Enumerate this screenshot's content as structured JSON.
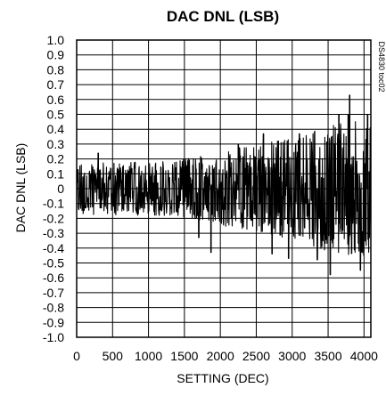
{
  "chart_data": {
    "type": "line",
    "title": "DAC DNL (LSB)",
    "xlabel": "SETTING (DEC)",
    "ylabel": "DAC DNL (LSB)",
    "figure_code": "DS4830 toc02",
    "xlim": [
      0,
      4095
    ],
    "ylim": [
      -1.0,
      1.0
    ],
    "x_ticks": [
      0,
      500,
      1000,
      1500,
      2000,
      2500,
      3000,
      3500,
      4000
    ],
    "x_tick_labels": [
      "0",
      "500",
      "1000",
      "1500",
      "2000",
      "2500",
      "3000",
      "3500",
      "4000"
    ],
    "y_ticks": [
      1.0,
      0.9,
      0.8,
      0.7,
      0.6,
      0.5,
      0.4,
      0.3,
      0.2,
      0.1,
      0,
      -0.1,
      -0.2,
      -0.3,
      -0.4,
      -0.5,
      -0.6,
      -0.7,
      -0.8,
      -0.9,
      -1.0
    ],
    "y_tick_labels": [
      "1.0",
      "0.9",
      "0.8",
      "0.7",
      "0.6",
      "0.5",
      "0.4",
      "0.3",
      "0.2",
      "0.1",
      "0",
      "-0.1",
      "-0.2",
      "-0.3",
      "-0.4",
      "-0.5",
      "-0.6",
      "-0.7",
      "-0.8",
      "-0.9",
      "-1.0"
    ],
    "grid": true,
    "series_color": "#000000",
    "envelope": {
      "x": [
        0,
        500,
        1000,
        1500,
        2000,
        2500,
        3000,
        3500,
        4095
      ],
      "upper": [
        0.17,
        0.18,
        0.18,
        0.2,
        0.25,
        0.3,
        0.35,
        0.42,
        0.48
      ],
      "lower": [
        -0.17,
        -0.18,
        -0.18,
        -0.2,
        -0.25,
        -0.3,
        -0.35,
        -0.42,
        -0.48
      ]
    },
    "spikes": [
      {
        "x": 300,
        "y": 0.24
      },
      {
        "x": 1700,
        "y": -0.33
      },
      {
        "x": 1870,
        "y": -0.43
      },
      {
        "x": 2250,
        "y": 0.3
      },
      {
        "x": 2600,
        "y": 0.37
      },
      {
        "x": 2720,
        "y": -0.44
      },
      {
        "x": 2950,
        "y": -0.47
      },
      {
        "x": 3100,
        "y": 0.37
      },
      {
        "x": 3350,
        "y": -0.48
      },
      {
        "x": 3530,
        "y": -0.58
      },
      {
        "x": 3650,
        "y": 0.5
      },
      {
        "x": 3780,
        "y": 0.5
      },
      {
        "x": 3800,
        "y": 0.63
      },
      {
        "x": 3950,
        "y": -0.55
      },
      {
        "x": 4050,
        "y": 0.5
      }
    ]
  }
}
